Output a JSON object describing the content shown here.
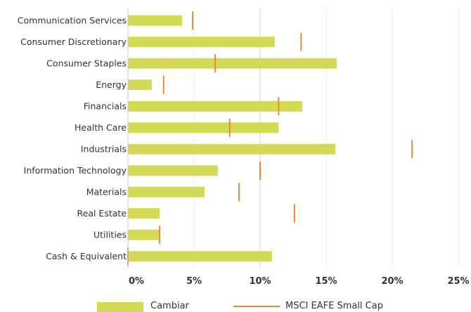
{
  "chart_data": {
    "type": "bar",
    "categories": [
      "Communication Services",
      "Consumer Discretionary",
      "Consumer Staples",
      "Energy",
      "Financials",
      "Health Care",
      "Industrials",
      "Information Technology",
      "Materials",
      "Real Estate",
      "Utilities",
      "Cash & Equivalent"
    ],
    "series": [
      {
        "name": "Cambiar",
        "kind": "bar",
        "color": "#d4da55",
        "values": [
          4.1,
          11.1,
          15.8,
          1.8,
          13.2,
          11.4,
          15.7,
          6.8,
          5.8,
          2.4,
          2.4,
          10.9
        ]
      },
      {
        "name": "MSCI EAFE Small Cap",
        "kind": "marker",
        "color": "#e8893a",
        "values": [
          4.9,
          13.1,
          6.6,
          2.7,
          11.4,
          7.7,
          21.5,
          10.0,
          8.4,
          12.6,
          2.4,
          0.0
        ]
      }
    ],
    "x_ticks": [
      "0%",
      "5%",
      "10%",
      "15%",
      "20%",
      "25%"
    ],
    "xlim": [
      0,
      25
    ],
    "xlabel": "",
    "ylabel": "",
    "title": "",
    "grid": true,
    "legend_position": "bottom"
  },
  "legend": {
    "items": [
      {
        "label": "Cambiar"
      },
      {
        "label": "MSCI EAFE Small Cap"
      }
    ]
  }
}
